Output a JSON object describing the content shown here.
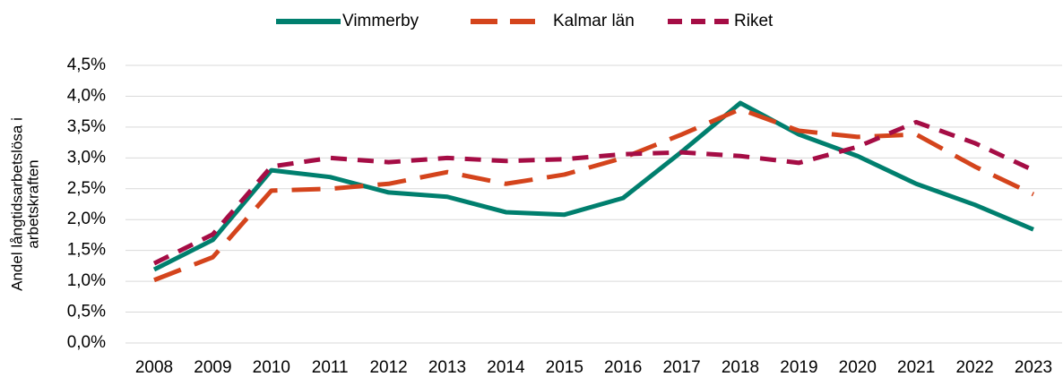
{
  "chart_data": {
    "type": "line",
    "ylabel": [
      "Andel långtidsarbetslösa i",
      "arbetskraften"
    ],
    "categories": [
      "2008",
      "2009",
      "2010",
      "2011",
      "2012",
      "2013",
      "2014",
      "2015",
      "2016",
      "2017",
      "2018",
      "2019",
      "2020",
      "2021",
      "2022",
      "2023"
    ],
    "series": [
      {
        "name": "Vimmerby",
        "color": "#007f6e",
        "line_style": "solid",
        "values": [
          1.19,
          1.67,
          2.8,
          2.69,
          2.44,
          2.37,
          2.12,
          2.08,
          2.35,
          3.1,
          3.89,
          3.38,
          3.03,
          2.58,
          2.24,
          1.84
        ]
      },
      {
        "name": "Kalmar län",
        "color": "#d4441c",
        "line_style": "long-dash",
        "values": [
          1.02,
          1.39,
          2.47,
          2.5,
          2.58,
          2.77,
          2.58,
          2.73,
          3.0,
          3.38,
          3.79,
          3.44,
          3.34,
          3.38,
          2.86,
          2.41
        ]
      },
      {
        "name": "Riket",
        "color": "#a50d45",
        "line_style": "dash",
        "values": [
          1.29,
          1.76,
          2.86,
          3.0,
          2.93,
          3.0,
          2.95,
          2.98,
          3.06,
          3.09,
          3.03,
          2.92,
          3.18,
          3.58,
          3.24,
          2.8
        ]
      }
    ],
    "ylim": [
      0,
      4.5
    ],
    "yticks": [
      {
        "value": 0,
        "label": "0,0%"
      },
      {
        "value": 0.5,
        "label": "0,5%"
      },
      {
        "value": 1,
        "label": "1,0%"
      },
      {
        "value": 1.5,
        "label": "1,5%"
      },
      {
        "value": 2,
        "label": "2,0%"
      },
      {
        "value": 2.5,
        "label": "2,5%"
      },
      {
        "value": 3,
        "label": "3,0%"
      },
      {
        "value": 3.5,
        "label": "3,5%"
      },
      {
        "value": 4,
        "label": "4,0%"
      },
      {
        "value": 4.5,
        "label": "4,5%"
      }
    ],
    "grid": true,
    "legend": "top"
  }
}
